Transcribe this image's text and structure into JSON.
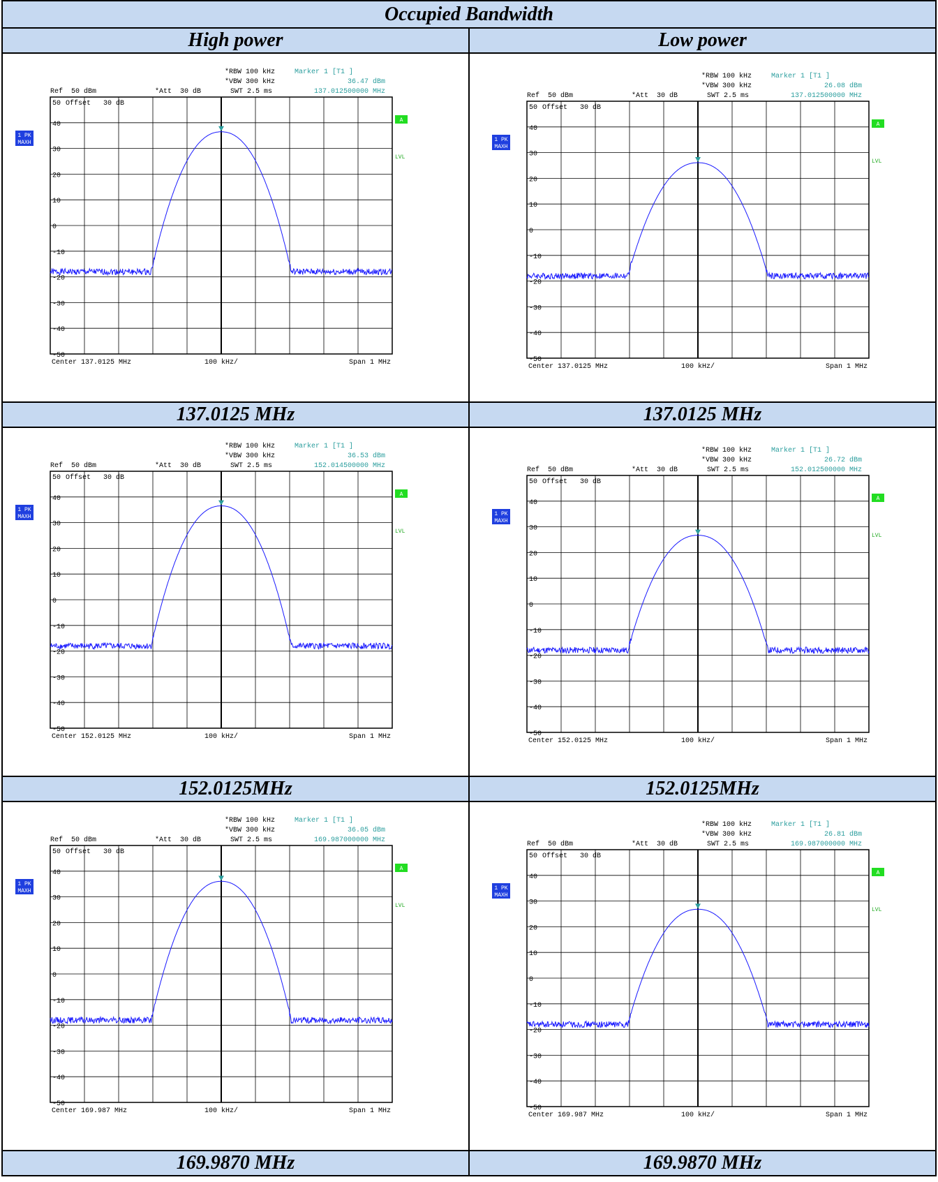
{
  "title": "Occupied Bandwidth",
  "columns": [
    "High power",
    "Low power"
  ],
  "rows": [
    {
      "plots": [
        {
          "ref": "Ref  50 dBm",
          "att": "*Att  30 dB",
          "rbw": "*RBW 100 kHz",
          "vbw": "*VBW 300 kHz",
          "swt": "SWT 2.5 ms",
          "marker": "Marker 1 [T1 ]",
          "marker_level": "36.47 dBm",
          "marker_freq": "137.012500000 MHz",
          "offset": "Offset   30 dB",
          "trace_label": "1 PK",
          "trace_mode": "MAXH",
          "a": "A",
          "lvl": "LVL",
          "ylabels": [
            "50",
            "40",
            "30",
            "20",
            "10",
            "0",
            "-10",
            "-20",
            "-30",
            "-40",
            "-50"
          ],
          "center": "Center 137.0125 MHz",
          "div": "100 kHz/",
          "span": "Span 1 MHz"
        },
        {
          "ref": "Ref  50 dBm",
          "att": "*Att  30 dB",
          "rbw": "*RBW 100 kHz",
          "vbw": "*VBW 300 kHz",
          "swt": "SWT 2.5 ms",
          "marker": "Marker 1 [T1 ]",
          "marker_level": "26.08 dBm",
          "marker_freq": "137.012500000 MHz",
          "offset": "Offset   30 dB",
          "trace_label": "1 PK",
          "trace_mode": "MAXH",
          "a": "A",
          "lvl": "LVL",
          "ylabels": [
            "50",
            "40",
            "30",
            "20",
            "10",
            "0",
            "-10",
            "-20",
            "-30",
            "-40",
            "-50"
          ],
          "center": "Center 137.0125 MHz",
          "div": "100 kHz/",
          "span": "Span 1 MHz"
        }
      ],
      "captions": [
        "137.0125 MHz",
        "137.0125 MHz"
      ]
    },
    {
      "plots": [
        {
          "ref": "Ref  50 dBm",
          "att": "*Att  30 dB",
          "rbw": "*RBW 100 kHz",
          "vbw": "*VBW 300 kHz",
          "swt": "SWT 2.5 ms",
          "marker": "Marker 1 [T1 ]",
          "marker_level": "36.53 dBm",
          "marker_freq": "152.014500000 MHz",
          "offset": "Offset   30 dB",
          "trace_label": "1 PK",
          "trace_mode": "MAXH",
          "a": "A",
          "lvl": "LVL",
          "ylabels": [
            "50",
            "40",
            "30",
            "20",
            "10",
            "0",
            "-10",
            "-20",
            "-30",
            "-40",
            "-50"
          ],
          "center": "Center 152.0125 MHz",
          "div": "100 kHz/",
          "span": "Span 1 MHz"
        },
        {
          "ref": "Ref  50 dBm",
          "att": "*Att  30 dB",
          "rbw": "*RBW 100 kHz",
          "vbw": "*VBW 300 kHz",
          "swt": "SWT 2.5 ms",
          "marker": "Marker 1 [T1 ]",
          "marker_level": "26.72 dBm",
          "marker_freq": "152.012500000 MHz",
          "offset": "Offset   30 dB",
          "trace_label": "1 PK",
          "trace_mode": "MAXH",
          "a": "A",
          "lvl": "LVL",
          "ylabels": [
            "50",
            "40",
            "30",
            "20",
            "10",
            "0",
            "-10",
            "-20",
            "-30",
            "-40",
            "-50"
          ],
          "center": "Center 152.0125 MHz",
          "div": "100 kHz/",
          "span": "Span 1 MHz"
        }
      ],
      "captions": [
        "152.0125MHz",
        "152.0125MHz"
      ]
    },
    {
      "plots": [
        {
          "ref": "Ref  50 dBm",
          "att": "*Att  30 dB",
          "rbw": "*RBW 100 kHz",
          "vbw": "*VBW 300 kHz",
          "swt": "SWT 2.5 ms",
          "marker": "Marker 1 [T1 ]",
          "marker_level": "36.05 dBm",
          "marker_freq": "169.987000000 MHz",
          "offset": "Offset   30 dB",
          "trace_label": "1 PK",
          "trace_mode": "MAXH",
          "a": "A",
          "lvl": "LVL",
          "ylabels": [
            "50",
            "40",
            "30",
            "20",
            "10",
            "0",
            "-10",
            "-20",
            "-30",
            "-40",
            "-50"
          ],
          "center": "Center 169.987 MHz",
          "div": "100 kHz/",
          "span": "Span 1 MHz"
        },
        {
          "ref": "Ref  50 dBm",
          "att": "*Att  30 dB",
          "rbw": "*RBW 100 kHz",
          "vbw": "*VBW 300 kHz",
          "swt": "SWT 2.5 ms",
          "marker": "Marker 1 [T1 ]",
          "marker_level": "26.81 dBm",
          "marker_freq": "169.987000000 MHz",
          "offset": "Offset   30 dB",
          "trace_label": "1 PK",
          "trace_mode": "MAXH",
          "a": "A",
          "lvl": "LVL",
          "ylabels": [
            "50",
            "40",
            "30",
            "20",
            "10",
            "0",
            "-10",
            "-20",
            "-30",
            "-40",
            "-50"
          ],
          "center": "Center 169.987 MHz",
          "div": "100 kHz/",
          "span": "Span 1 MHz"
        }
      ],
      "captions": [
        "169.9870 MHz",
        "169.9870 MHz"
      ]
    }
  ]
}
